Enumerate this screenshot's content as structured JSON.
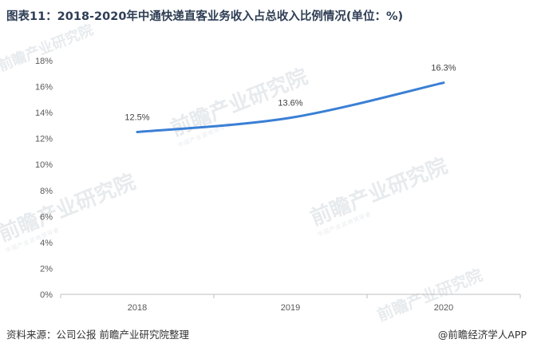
{
  "title": "图表11：2018-2020年中通快递直客业务收入占总收入比例情况(单位：%)",
  "source": "资料来源：公司公报 前瞻产业研究院整理",
  "brand": "@前瞻经济学人APP",
  "watermark": {
    "text": "前瞻产业研究院",
    "sub": "中国产业咨询领导者"
  },
  "colors": {
    "line": "#3a7fd5",
    "axis": "#bfbfbf",
    "title": "#2f3e55",
    "watermark": "#e7ebee"
  },
  "chart_data": {
    "type": "line",
    "categories": [
      "2018",
      "2019",
      "2020"
    ],
    "series": [
      {
        "values": [
          12.5,
          13.6,
          16.3
        ],
        "labels": [
          "12.5%",
          "13.6%",
          "16.3%"
        ]
      }
    ],
    "ylim": [
      0,
      18
    ],
    "yticks": [
      0,
      2,
      4,
      6,
      8,
      10,
      12,
      14,
      16,
      18
    ],
    "ytick_labels": [
      "0%",
      "2%",
      "4%",
      "6%",
      "8%",
      "10%",
      "12%",
      "14%",
      "16%",
      "18%"
    ],
    "grid": false,
    "legend": "none",
    "smooth": true
  }
}
